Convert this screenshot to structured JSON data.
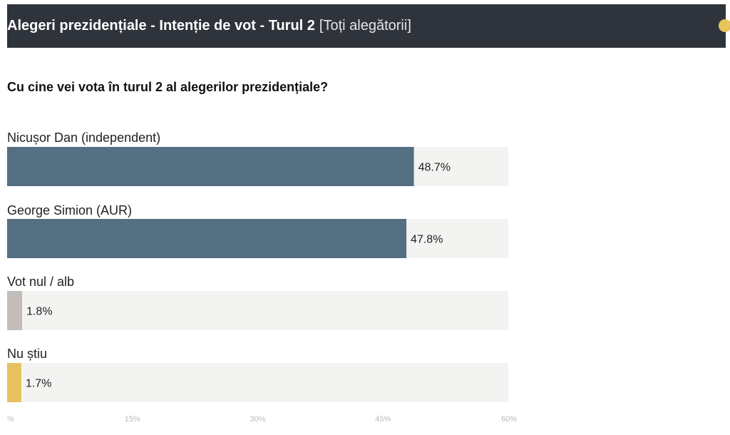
{
  "header": {
    "title": "Alegeri prezidențiale - Intenție de vot - Turul 2",
    "filter": "[Toți alegătorii]"
  },
  "question": "Cu cine vei vota în turul 2 al alegerilor prezidențiale?",
  "chart_data": {
    "type": "bar",
    "orientation": "horizontal",
    "categories": [
      "Nicușor Dan (independent)",
      "George Simion (AUR)",
      "Vot nul / alb",
      "Nu știu"
    ],
    "values": [
      48.7,
      47.8,
      1.8,
      1.7
    ],
    "value_labels": [
      "48.7%",
      "47.8%",
      "1.8%",
      "1.7%"
    ],
    "colors": [
      "#546e82",
      "#546e82",
      "#c2bdb8",
      "#e5c15f"
    ],
    "track_color": "#f3f3f1",
    "xlim": [
      0,
      60
    ],
    "x_ticks": [
      0,
      15,
      30,
      45,
      60
    ],
    "x_tick_labels": [
      "%",
      "15%",
      "30%",
      "45%",
      "60%"
    ]
  }
}
